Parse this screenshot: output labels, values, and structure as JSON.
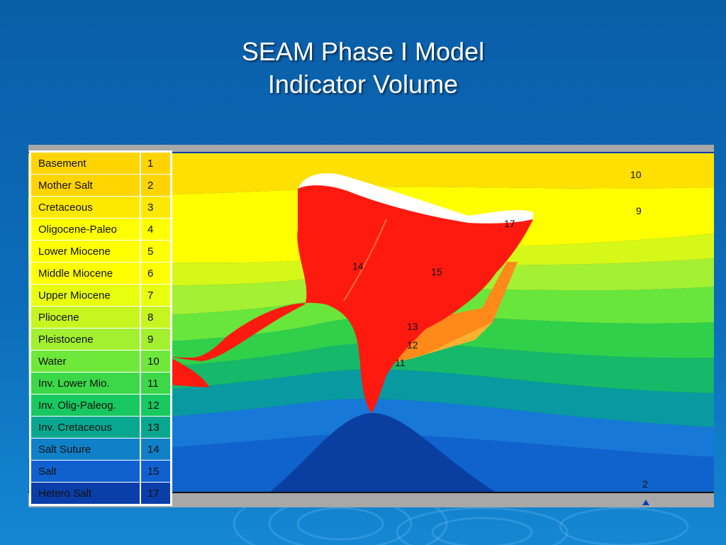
{
  "title_line1": "SEAM Phase I Model",
  "title_line2": "Indicator Volume",
  "legend": [
    {
      "name": "Basement",
      "value": "1",
      "color": "#ffd400"
    },
    {
      "name": "Mother Salt",
      "value": "2",
      "color": "#ffd400"
    },
    {
      "name": "Cretaceous",
      "value": "3",
      "color": "#ffe800"
    },
    {
      "name": "Oligocene-Paleo",
      "value": "4",
      "color": "#ffff00"
    },
    {
      "name": "Lower Miocene",
      "value": "5",
      "color": "#ffff00"
    },
    {
      "name": "Middle Miocene",
      "value": "6",
      "color": "#ffff00"
    },
    {
      "name": "Upper Miocene",
      "value": "7",
      "color": "#e8ff10"
    },
    {
      "name": "Pliocene",
      "value": "8",
      "color": "#c6f520"
    },
    {
      "name": "Pleistocene",
      "value": "9",
      "color": "#a2f030"
    },
    {
      "name": "Water",
      "value": "10",
      "color": "#6ee83a"
    },
    {
      "name": "Inv. Lower Mio.",
      "value": "11",
      "color": "#3cd848"
    },
    {
      "name": "Inv. Olig-Paleog.",
      "value": "12",
      "color": "#18c860"
    },
    {
      "name": "Inv. Cretaceous",
      "value": "13",
      "color": "#08a890"
    },
    {
      "name": "Salt Suture",
      "value": "14",
      "color": "#1080c8"
    },
    {
      "name": "Salt",
      "value": "15",
      "color": "#1060d0"
    },
    {
      "name": "Hetero Salt",
      "value": "17",
      "color": "#0a3ea8"
    }
  ],
  "labels": {
    "l10": "10",
    "l9": "9",
    "l17": "17",
    "l14": "14",
    "l15": "15",
    "l13": "13",
    "l12": "12",
    "l11": "11",
    "l2": "2"
  }
}
